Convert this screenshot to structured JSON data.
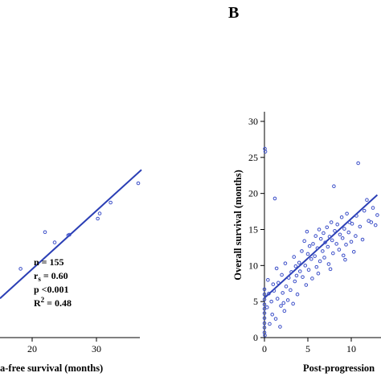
{
  "chart_data": [
    {
      "type": "scatter",
      "panel": "",
      "title": "",
      "xlabel": "a-free survival (months)",
      "ylabel": "",
      "xlim": [
        0,
        37
      ],
      "ylim": [
        0,
        30
      ],
      "x_ticks": [
        20,
        30
      ],
      "grid": false,
      "points": [
        {
          "x": 18.2,
          "y": 10.7
        },
        {
          "x": 22.0,
          "y": 16.4
        },
        {
          "x": 23.5,
          "y": 14.8
        },
        {
          "x": 25.6,
          "y": 15.9
        },
        {
          "x": 25.8,
          "y": 16.0
        },
        {
          "x": 30.2,
          "y": 18.5
        },
        {
          "x": 30.5,
          "y": 19.3
        },
        {
          "x": 32.2,
          "y": 21.0
        },
        {
          "x": 36.5,
          "y": 24.0
        }
      ],
      "regression": {
        "x": [
          0,
          37
        ],
        "y": [
          6.1,
          26.1
        ]
      },
      "stats": [
        "n = 155",
        "r",
        "s",
        " = 0.60",
        "p <0.001",
        "R",
        "2",
        " = 0.48"
      ]
    },
    {
      "type": "scatter",
      "panel": "B",
      "title": "",
      "xlabel": "Post-progression",
      "ylabel": "Overall survival (months)",
      "xlim": [
        0,
        13
      ],
      "ylim": [
        0,
        31
      ],
      "x_ticks": [
        0,
        5,
        10
      ],
      "y_ticks": [
        0,
        5,
        10,
        15,
        20,
        25,
        30
      ],
      "grid": false,
      "points": [
        {
          "x": 0.05,
          "y": 26.2
        },
        {
          "x": 0.1,
          "y": 25.8
        },
        {
          "x": 0.0,
          "y": 6.7
        },
        {
          "x": 0.0,
          "y": 6.0
        },
        {
          "x": 0.0,
          "y": 5.3
        },
        {
          "x": 0.0,
          "y": 4.6
        },
        {
          "x": 0.0,
          "y": 4.0
        },
        {
          "x": 0.0,
          "y": 3.4
        },
        {
          "x": 0.0,
          "y": 2.7
        },
        {
          "x": 0.0,
          "y": 2.0
        },
        {
          "x": 0.0,
          "y": 1.4
        },
        {
          "x": 0.0,
          "y": 0.7
        },
        {
          "x": 0.05,
          "y": 0.3
        },
        {
          "x": 0.3,
          "y": 4.2
        },
        {
          "x": 0.5,
          "y": 6.1
        },
        {
          "x": 0.6,
          "y": 1.9
        },
        {
          "x": 0.8,
          "y": 5.0
        },
        {
          "x": 0.9,
          "y": 3.2
        },
        {
          "x": 1.1,
          "y": 6.5
        },
        {
          "x": 1.2,
          "y": 19.3
        },
        {
          "x": 1.3,
          "y": 2.6
        },
        {
          "x": 1.4,
          "y": 9.6
        },
        {
          "x": 1.5,
          "y": 5.4
        },
        {
          "x": 1.6,
          "y": 7.6
        },
        {
          "x": 1.8,
          "y": 1.5
        },
        {
          "x": 1.9,
          "y": 4.4
        },
        {
          "x": 2.0,
          "y": 8.7
        },
        {
          "x": 2.1,
          "y": 6.2
        },
        {
          "x": 2.3,
          "y": 3.7
        },
        {
          "x": 2.4,
          "y": 10.3
        },
        {
          "x": 2.5,
          "y": 7.1
        },
        {
          "x": 2.7,
          "y": 5.2
        },
        {
          "x": 2.8,
          "y": 8.3
        },
        {
          "x": 3.0,
          "y": 6.6
        },
        {
          "x": 3.1,
          "y": 9.1
        },
        {
          "x": 3.3,
          "y": 4.7
        },
        {
          "x": 3.4,
          "y": 11.2
        },
        {
          "x": 3.5,
          "y": 7.8
        },
        {
          "x": 3.7,
          "y": 8.6
        },
        {
          "x": 3.8,
          "y": 6.0
        },
        {
          "x": 4.0,
          "y": 10.4
        },
        {
          "x": 4.1,
          "y": 9.2
        },
        {
          "x": 4.3,
          "y": 12.0
        },
        {
          "x": 4.4,
          "y": 8.4
        },
        {
          "x": 4.6,
          "y": 13.4
        },
        {
          "x": 4.7,
          "y": 10.0
        },
        {
          "x": 4.9,
          "y": 14.7
        },
        {
          "x": 5.0,
          "y": 11.6
        },
        {
          "x": 5.1,
          "y": 9.4
        },
        {
          "x": 5.2,
          "y": 12.7
        },
        {
          "x": 5.4,
          "y": 10.9
        },
        {
          "x": 5.5,
          "y": 8.2
        },
        {
          "x": 5.6,
          "y": 13.0
        },
        {
          "x": 5.8,
          "y": 11.3
        },
        {
          "x": 5.9,
          "y": 14.1
        },
        {
          "x": 6.0,
          "y": 9.8
        },
        {
          "x": 6.1,
          "y": 12.4
        },
        {
          "x": 6.3,
          "y": 15.0
        },
        {
          "x": 6.4,
          "y": 10.6
        },
        {
          "x": 6.5,
          "y": 13.7
        },
        {
          "x": 6.7,
          "y": 12.0
        },
        {
          "x": 6.8,
          "y": 14.5
        },
        {
          "x": 6.9,
          "y": 11.1
        },
        {
          "x": 7.0,
          "y": 13.2
        },
        {
          "x": 7.2,
          "y": 15.3
        },
        {
          "x": 7.3,
          "y": 12.6
        },
        {
          "x": 7.4,
          "y": 10.2
        },
        {
          "x": 7.5,
          "y": 14.0
        },
        {
          "x": 7.7,
          "y": 16.0
        },
        {
          "x": 7.8,
          "y": 13.5
        },
        {
          "x": 7.9,
          "y": 11.7
        },
        {
          "x": 8.0,
          "y": 21.0
        },
        {
          "x": 8.1,
          "y": 14.8
        },
        {
          "x": 8.3,
          "y": 13.0
        },
        {
          "x": 8.4,
          "y": 15.7
        },
        {
          "x": 8.6,
          "y": 12.2
        },
        {
          "x": 8.7,
          "y": 14.3
        },
        {
          "x": 8.9,
          "y": 16.7
        },
        {
          "x": 9.0,
          "y": 13.8
        },
        {
          "x": 9.1,
          "y": 11.4
        },
        {
          "x": 9.2,
          "y": 15.1
        },
        {
          "x": 9.4,
          "y": 12.9
        },
        {
          "x": 9.5,
          "y": 17.2
        },
        {
          "x": 9.7,
          "y": 14.6
        },
        {
          "x": 9.8,
          "y": 16.0
        },
        {
          "x": 10.0,
          "y": 13.3
        },
        {
          "x": 10.1,
          "y": 15.8
        },
        {
          "x": 10.3,
          "y": 11.9
        },
        {
          "x": 10.5,
          "y": 14.1
        },
        {
          "x": 10.6,
          "y": 16.9
        },
        {
          "x": 10.8,
          "y": 24.2
        },
        {
          "x": 11.0,
          "y": 15.4
        },
        {
          "x": 11.3,
          "y": 13.6
        },
        {
          "x": 11.5,
          "y": 17.6
        },
        {
          "x": 11.8,
          "y": 19.1
        },
        {
          "x": 12.0,
          "y": 16.2
        },
        {
          "x": 12.3,
          "y": 16.0
        },
        {
          "x": 12.5,
          "y": 18.0
        },
        {
          "x": 12.8,
          "y": 15.6
        },
        {
          "x": 13.0,
          "y": 17.0
        },
        {
          "x": 0.4,
          "y": 8.0
        },
        {
          "x": 1.0,
          "y": 7.4
        },
        {
          "x": 2.2,
          "y": 4.8
        },
        {
          "x": 3.6,
          "y": 9.9
        },
        {
          "x": 4.8,
          "y": 7.3
        },
        {
          "x": 6.2,
          "y": 8.9
        },
        {
          "x": 7.6,
          "y": 9.5
        },
        {
          "x": 9.3,
          "y": 10.8
        }
      ],
      "regression": {
        "x": [
          0,
          13
        ],
        "y": [
          5.5,
          19.8
        ]
      }
    }
  ]
}
